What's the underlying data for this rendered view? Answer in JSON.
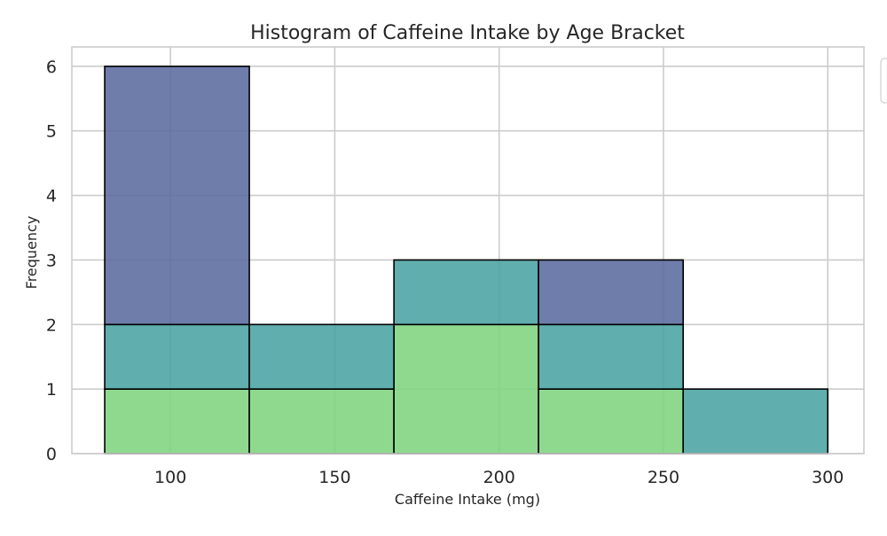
{
  "chart_data": {
    "type": "bar",
    "subtype": "stacked-histogram",
    "title": "Histogram of Caffeine Intake by Age Bracket",
    "xlabel": "Caffeine Intake (mg)",
    "ylabel": "Frequency",
    "xlim": [
      70,
      311
    ],
    "ylim": [
      0,
      6.3
    ],
    "x_ticks": [
      100,
      150,
      200,
      250,
      300
    ],
    "y_ticks": [
      0,
      1,
      2,
      3,
      4,
      5,
      6
    ],
    "grid": true,
    "legend_position": "top-right (outside)",
    "bin_edges": [
      80,
      124,
      168,
      212,
      256,
      300
    ],
    "series": [
      {
        "color": "#7fd47f",
        "values": [
          1,
          1,
          2,
          1,
          0
        ]
      },
      {
        "color": "#4aa3a2",
        "values": [
          1,
          1,
          1,
          1,
          1
        ]
      },
      {
        "color": "#5a6b9e",
        "values": [
          4,
          0,
          0,
          1,
          0
        ]
      }
    ]
  }
}
